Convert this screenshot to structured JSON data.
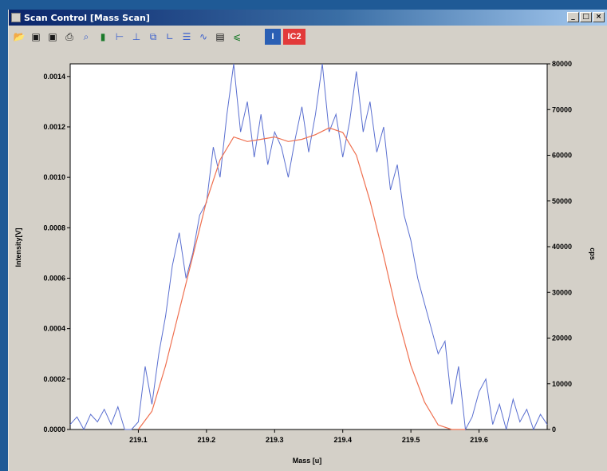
{
  "window": {
    "title": "Scan Control [Mass Scan]",
    "controls": [
      "_",
      "□",
      "×"
    ]
  },
  "toolbar": {
    "icons": [
      "open-icon",
      "save-icon",
      "save-as-icon",
      "print-icon",
      "zoom-icon",
      "delete-icon",
      "h-cursor-icon",
      "v-cursor-icon",
      "copy-icon",
      "axes-icon",
      "list-icon",
      "peak-icon",
      "window-icon",
      "ruler-icon"
    ],
    "i1_label": "I",
    "i2_label": "IC2"
  },
  "chart_data": {
    "type": "line",
    "xlabel": "Mass [u]",
    "ylabel_left": "Intensity[V]",
    "ylabel_right": "cps",
    "xlim": [
      219.0,
      219.7
    ],
    "ylim_left": [
      0.0,
      0.00145
    ],
    "ylim_right": [
      0,
      80000
    ],
    "x_ticks": [
      "219.1",
      "219.2",
      "219.3",
      "219.4",
      "219.5",
      "219.6"
    ],
    "y_ticks_left": [
      "0.0000",
      "0.0002",
      "0.0004",
      "0.0006",
      "0.0008",
      "0.0010",
      "0.0012",
      "0.0014"
    ],
    "y_ticks_right": [
      "0",
      "10000",
      "20000",
      "30000",
      "40000",
      "50000",
      "60000",
      "70000",
      "80000"
    ],
    "series": [
      {
        "name": "I",
        "axis": "left",
        "color": "#5a6fd0",
        "x": [
          219.0,
          219.01,
          219.02,
          219.03,
          219.04,
          219.05,
          219.06,
          219.07,
          219.08,
          219.09,
          219.1,
          219.11,
          219.12,
          219.13,
          219.14,
          219.15,
          219.16,
          219.17,
          219.18,
          219.19,
          219.2,
          219.21,
          219.22,
          219.23,
          219.24,
          219.25,
          219.26,
          219.27,
          219.28,
          219.29,
          219.3,
          219.31,
          219.32,
          219.33,
          219.34,
          219.35,
          219.36,
          219.37,
          219.38,
          219.39,
          219.4,
          219.41,
          219.42,
          219.43,
          219.44,
          219.45,
          219.46,
          219.47,
          219.48,
          219.49,
          219.5,
          219.51,
          219.52,
          219.53,
          219.54,
          219.55,
          219.56,
          219.57,
          219.58,
          219.59,
          219.6,
          219.61,
          219.62,
          219.63,
          219.64,
          219.65,
          219.66,
          219.67,
          219.68,
          219.69,
          219.7
        ],
        "y": [
          2e-05,
          5e-05,
          0.0,
          6e-05,
          3e-05,
          8e-05,
          2e-05,
          9e-05,
          0.0,
          0.0,
          3e-05,
          0.00025,
          0.0001,
          0.0003,
          0.00045,
          0.00065,
          0.00078,
          0.0006,
          0.0007,
          0.00085,
          0.0009,
          0.00112,
          0.001,
          0.00125,
          0.00145,
          0.00118,
          0.0013,
          0.00108,
          0.00125,
          0.00105,
          0.00118,
          0.00112,
          0.001,
          0.00115,
          0.00128,
          0.0011,
          0.00125,
          0.00145,
          0.00118,
          0.00125,
          0.00108,
          0.00122,
          0.00142,
          0.00118,
          0.0013,
          0.0011,
          0.0012,
          0.00095,
          0.00105,
          0.00085,
          0.00075,
          0.0006,
          0.0005,
          0.0004,
          0.0003,
          0.00035,
          0.0001,
          0.00025,
          0.0,
          5e-05,
          0.00015,
          0.0002,
          2e-05,
          0.0001,
          0.0,
          0.00012,
          3e-05,
          8e-05,
          0.0,
          6e-05,
          2e-05
        ]
      },
      {
        "name": "IC2",
        "axis": "right",
        "color": "#ef7050",
        "x": [
          219.1,
          219.12,
          219.14,
          219.16,
          219.18,
          219.2,
          219.22,
          219.24,
          219.26,
          219.28,
          219.3,
          219.32,
          219.34,
          219.36,
          219.38,
          219.4,
          219.42,
          219.44,
          219.46,
          219.48,
          219.5,
          219.52,
          219.54,
          219.56,
          219.58
        ],
        "y": [
          0,
          4000,
          14000,
          26000,
          38000,
          50000,
          59000,
          64000,
          63000,
          63500,
          64000,
          63000,
          63500,
          64500,
          66000,
          65000,
          60000,
          50000,
          38000,
          25000,
          14000,
          6000,
          1000,
          0,
          0
        ]
      }
    ]
  }
}
